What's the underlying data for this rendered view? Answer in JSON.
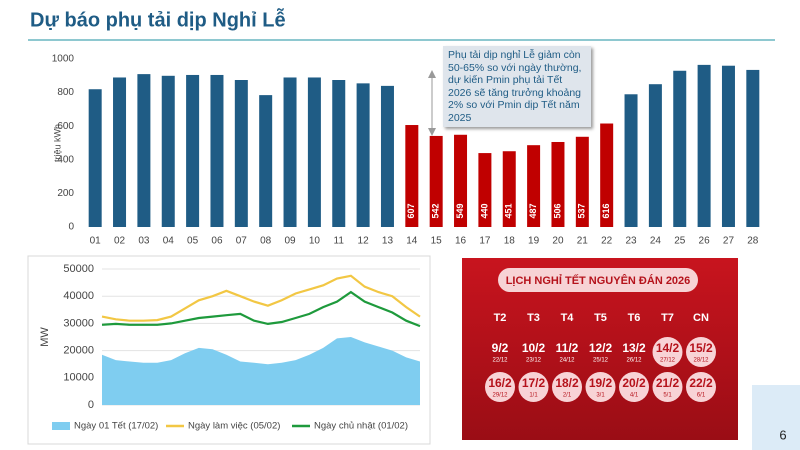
{
  "header": {
    "title": "Dự báo phụ tải dịp Nghỉ Lễ",
    "page_number": "6"
  },
  "chart_data": [
    {
      "type": "bar",
      "y_label": "triệu kWh",
      "categories": [
        "01",
        "02",
        "03",
        "04",
        "05",
        "06",
        "07",
        "08",
        "09",
        "10",
        "11",
        "12",
        "13",
        "14",
        "15",
        "16",
        "17",
        "18",
        "19",
        "20",
        "21",
        "22",
        "23",
        "24",
        "25",
        "26",
        "27",
        "28"
      ],
      "values": [
        820,
        890,
        910,
        900,
        905,
        905,
        875,
        785,
        890,
        890,
        875,
        855,
        840,
        607,
        542,
        549,
        440,
        451,
        487,
        506,
        537,
        616,
        790,
        850,
        930,
        965,
        960,
        935
      ],
      "value_labels": [
        null,
        null,
        null,
        null,
        null,
        null,
        null,
        null,
        null,
        null,
        null,
        null,
        null,
        "607",
        "542",
        "549",
        "440",
        "451",
        "487",
        "506",
        "537",
        "616",
        null,
        null,
        null,
        null,
        null,
        null
      ],
      "colors": [
        "#1f5c85",
        "#1f5c85",
        "#1f5c85",
        "#1f5c85",
        "#1f5c85",
        "#1f5c85",
        "#1f5c85",
        "#1f5c85",
        "#1f5c85",
        "#1f5c85",
        "#1f5c85",
        "#1f5c85",
        "#1f5c85",
        "#c00000",
        "#c00000",
        "#c00000",
        "#c00000",
        "#c00000",
        "#c00000",
        "#c00000",
        "#c00000",
        "#c00000",
        "#1f5c85",
        "#1f5c85",
        "#1f5c85",
        "#1f5c85",
        "#1f5c85",
        "#1f5c85"
      ],
      "ylim": [
        0,
        1000
      ],
      "yticks": [
        0,
        200,
        400,
        600,
        800,
        1000
      ],
      "grid": false,
      "annotation": "Phụ tải dịp nghỉ Lễ giảm còn 50-65% so với ngày thường, dự kiến Pmin phụ tải Tết 2026 sẽ tăng trưởng khoảng 2% so với Pmin dịp Tết năm 2025"
    },
    {
      "type": "line",
      "y_label": "MW",
      "legend": "bottom",
      "grid": true,
      "ylim": [
        0,
        50000
      ],
      "yticks": [
        0,
        10000,
        20000,
        30000,
        40000,
        50000
      ],
      "series": [
        {
          "name": "Ngày 01 Tết (17/02)",
          "color": "#7fcdf0",
          "area": true,
          "values": [
            18500,
            16500,
            16000,
            15500,
            15500,
            16500,
            19000,
            21000,
            20500,
            18500,
            16000,
            15500,
            15000,
            15500,
            16500,
            18500,
            21000,
            24500,
            25000,
            23000,
            21500,
            20000,
            17500,
            16000
          ]
        },
        {
          "name": "Ngày làm việc (05/02)",
          "color": "#f2c744",
          "area": false,
          "values": [
            32500,
            31500,
            31000,
            31000,
            31200,
            32500,
            35500,
            38500,
            40000,
            42000,
            40000,
            38000,
            36500,
            38500,
            41000,
            42500,
            44000,
            46500,
            47500,
            43500,
            41500,
            40000,
            36000,
            32500
          ]
        },
        {
          "name": "Ngày chủ nhật (01/02)",
          "color": "#1e9a3c",
          "area": false,
          "values": [
            29500,
            29800,
            29500,
            29500,
            29500,
            30000,
            31000,
            32000,
            32500,
            33000,
            33500,
            31000,
            29800,
            30500,
            32000,
            33500,
            36000,
            38000,
            41500,
            38000,
            36000,
            34000,
            31000,
            29000
          ]
        }
      ]
    }
  ],
  "calendar": {
    "title": "LỊCH NGHỈ TẾT NGUYÊN ĐÁN 2026",
    "weekdays": [
      "T2",
      "T3",
      "T4",
      "T5",
      "T6",
      "T7",
      "CN"
    ],
    "rows": [
      [
        {
          "date": "9/2",
          "lunar": "22/12",
          "holiday": false
        },
        {
          "date": "10/2",
          "lunar": "23/12",
          "holiday": false
        },
        {
          "date": "11/2",
          "lunar": "24/12",
          "holiday": false
        },
        {
          "date": "12/2",
          "lunar": "25/12",
          "holiday": false
        },
        {
          "date": "13/2",
          "lunar": "26/12",
          "holiday": false
        },
        {
          "date": "14/2",
          "lunar": "27/12",
          "holiday": true
        },
        {
          "date": "15/2",
          "lunar": "28/12",
          "holiday": true
        }
      ],
      [
        {
          "date": "16/2",
          "lunar": "29/12",
          "holiday": true
        },
        {
          "date": "17/2",
          "lunar": "1/1",
          "holiday": true
        },
        {
          "date": "18/2",
          "lunar": "2/1",
          "holiday": true
        },
        {
          "date": "19/2",
          "lunar": "3/1",
          "holiday": true
        },
        {
          "date": "20/2",
          "lunar": "4/1",
          "holiday": true
        },
        {
          "date": "21/2",
          "lunar": "5/1",
          "holiday": true
        },
        {
          "date": "22/2",
          "lunar": "6/1",
          "holiday": true
        }
      ]
    ]
  }
}
